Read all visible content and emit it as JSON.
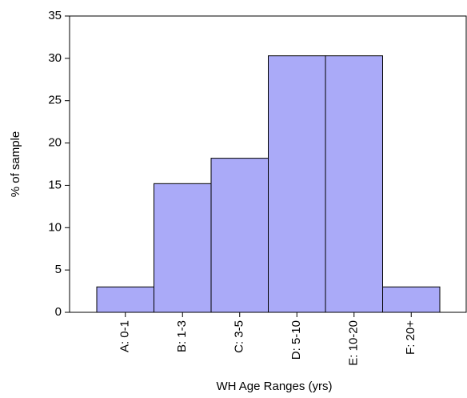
{
  "chart_data": {
    "type": "bar",
    "x_label": "WH Age Ranges (yrs)",
    "y_label": "% of sample",
    "categories": [
      "A: 0-1",
      "B: 1-3",
      "C: 3-5",
      "D: 5-10",
      "E: 10-20",
      "F: 20+"
    ],
    "values": [
      3,
      15.2,
      18.2,
      30.3,
      30.3,
      3
    ],
    "color": "#aaaaf8",
    "ylim": [
      0,
      35
    ],
    "yticks": [
      0,
      5,
      10,
      15,
      20,
      25,
      30,
      35
    ]
  }
}
